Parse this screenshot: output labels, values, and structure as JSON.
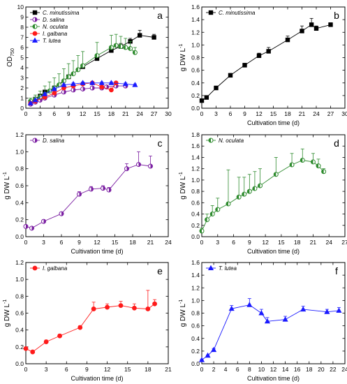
{
  "chart_data": [
    {
      "panel": "a",
      "type": "line",
      "ylabel_main": "OD",
      "ylabel_sub": "750",
      "xlabel": "",
      "xlim": [
        0,
        30
      ],
      "ylim": [
        0,
        10
      ],
      "xticks": [
        0,
        3,
        6,
        9,
        12,
        15,
        18,
        21,
        24,
        27,
        30
      ],
      "yticks": [
        0,
        1,
        2,
        3,
        4,
        5,
        6,
        7,
        8,
        9,
        10
      ],
      "legend_position": "top-left",
      "series": [
        {
          "name": "C. minutissima",
          "color": "#000000",
          "marker": "square",
          "filled": true,
          "x": [
            1,
            2,
            3,
            4,
            6,
            9,
            12,
            15,
            18,
            20,
            22,
            24,
            27
          ],
          "y": [
            0.6,
            0.9,
            1.2,
            1.6,
            2.0,
            3.1,
            4.1,
            4.9,
            5.7,
            6.1,
            6.6,
            7.2,
            7.0
          ],
          "err": [
            0.1,
            0.1,
            0.1,
            0.2,
            0.2,
            0.2,
            0.2,
            0.2,
            0.3,
            0.3,
            0.3,
            0.5,
            0.3
          ]
        },
        {
          "name": "D. salina",
          "color": "#7b1fa2",
          "marker": "circle-half",
          "filled": false,
          "x": [
            1,
            2,
            3,
            4,
            6,
            8,
            10,
            12,
            14,
            16,
            17,
            19,
            21
          ],
          "y": [
            0.4,
            0.6,
            0.8,
            1.0,
            1.3,
            1.6,
            1.8,
            1.9,
            2.0,
            2.0,
            2.1,
            2.2,
            2.2
          ],
          "err": [
            0.1,
            0.1,
            0.1,
            0.1,
            0.1,
            0.1,
            0.1,
            0.1,
            0.1,
            0.1,
            0.1,
            0.1,
            0.1
          ]
        },
        {
          "name": "N. oculata",
          "color": "#2e8b2e",
          "marker": "circle-half",
          "filled": true,
          "x": [
            1,
            2,
            3,
            4,
            5,
            6,
            7,
            8,
            9,
            10,
            11,
            12,
            15,
            18,
            19,
            20,
            21,
            22,
            23
          ],
          "y": [
            0.7,
            0.9,
            1.1,
            1.4,
            1.7,
            2.0,
            2.3,
            2.7,
            3.1,
            3.4,
            3.8,
            4.2,
            5.2,
            6.0,
            6.2,
            6.1,
            6.0,
            5.9,
            5.5
          ],
          "err": [
            0.3,
            0.4,
            0.6,
            0.8,
            0.9,
            1.0,
            1.1,
            1.2,
            1.3,
            1.3,
            1.4,
            1.4,
            1.3,
            1.2,
            1.1,
            1.0,
            0.9,
            0.7,
            0.5
          ]
        },
        {
          "name": "I. galbana",
          "color": "#ff1a1a",
          "marker": "circle",
          "filled": true,
          "x": [
            1,
            2,
            4,
            6,
            8,
            10,
            12,
            14,
            16,
            18,
            19
          ],
          "y": [
            0.5,
            0.7,
            1.1,
            1.5,
            2.0,
            2.2,
            2.4,
            2.5,
            2.1,
            1.8,
            2.5
          ],
          "err": [
            0.05,
            0.05,
            0.1,
            0.1,
            0.1,
            0.2,
            0.1,
            0.1,
            0.1,
            0.1,
            0.1
          ]
        },
        {
          "name": "T. lutea",
          "color": "#1a1aff",
          "marker": "triangle",
          "filled": true,
          "x": [
            1,
            2,
            4,
            6,
            8,
            10,
            12,
            14,
            16,
            18,
            21,
            23
          ],
          "y": [
            0.5,
            0.8,
            1.4,
            1.9,
            2.3,
            2.4,
            2.5,
            2.5,
            2.5,
            2.5,
            2.4,
            2.3
          ],
          "err": [
            0.05,
            0.05,
            0.1,
            0.1,
            0.1,
            0.1,
            0.1,
            0.1,
            0.1,
            0.1,
            0.1,
            0.1
          ]
        }
      ]
    },
    {
      "panel": "b",
      "type": "line",
      "ylabel_main": "g DW L",
      "ylabel_sup": "-1",
      "xlabel": "Cultivation time (d)",
      "xlim": [
        0,
        30
      ],
      "ylim": [
        0,
        1.6
      ],
      "xticks": [
        0,
        3,
        6,
        9,
        12,
        15,
        18,
        21,
        24,
        27,
        30
      ],
      "yticks": [
        0,
        0.2,
        0.4,
        0.6,
        0.8,
        1.0,
        1.2,
        1.4,
        1.6
      ],
      "legend_position": "top-left",
      "series": [
        {
          "name": "C. minutissima",
          "color": "#000000",
          "marker": "square",
          "filled": true,
          "x": [
            0,
            1,
            3,
            6,
            9,
            12,
            14,
            18,
            21,
            23,
            24,
            27
          ],
          "y": [
            0.12,
            0.17,
            0.32,
            0.52,
            0.68,
            0.83,
            0.9,
            1.08,
            1.22,
            1.32,
            1.26,
            1.32
          ],
          "err": [
            0.02,
            0.02,
            0.03,
            0.03,
            0.03,
            0.04,
            0.06,
            0.06,
            0.08,
            0.1,
            0.04,
            0.03
          ]
        }
      ]
    },
    {
      "panel": "c",
      "type": "line",
      "ylabel_main": "g DW L",
      "ylabel_sup": "-1",
      "xlabel": "Cultivation time (d)",
      "xlim": [
        0,
        24
      ],
      "ylim": [
        0,
        1.2
      ],
      "xticks": [
        0,
        3,
        6,
        9,
        12,
        15,
        18,
        21,
        24
      ],
      "yticks": [
        0,
        0.2,
        0.4,
        0.6,
        0.8,
        1.0,
        1.2
      ],
      "legend_position": "top-left",
      "series": [
        {
          "name": "D. salina",
          "color": "#7b1fa2",
          "marker": "circle-half",
          "filled": false,
          "x": [
            0,
            1,
            3,
            6,
            9,
            11,
            13,
            14,
            17,
            19,
            21
          ],
          "y": [
            0.12,
            0.1,
            0.18,
            0.27,
            0.5,
            0.56,
            0.57,
            0.55,
            0.8,
            0.85,
            0.83
          ],
          "err": [
            0.01,
            0.01,
            0.02,
            0.02,
            0.03,
            0.03,
            0.03,
            0.03,
            0.06,
            0.15,
            0.12
          ]
        }
      ]
    },
    {
      "panel": "d",
      "type": "line",
      "ylabel_main": "g DW L",
      "ylabel_sup": "-1",
      "xlabel": "Cultivation time (d)",
      "xlim": [
        0,
        27
      ],
      "ylim": [
        0,
        1.8
      ],
      "xticks": [
        0,
        3,
        6,
        9,
        12,
        15,
        18,
        21,
        24,
        27
      ],
      "yticks": [
        0,
        0.2,
        0.4,
        0.6,
        0.8,
        1.0,
        1.2,
        1.4,
        1.6,
        1.8
      ],
      "legend_position": "top-left",
      "series": [
        {
          "name": "N. oculata",
          "color": "#2e8b2e",
          "marker": "circle-half",
          "filled": true,
          "x": [
            0,
            1,
            2,
            3,
            5,
            7,
            8,
            9,
            10,
            11,
            14,
            17,
            19,
            21,
            22,
            23
          ],
          "y": [
            0.1,
            0.3,
            0.4,
            0.48,
            0.58,
            0.7,
            0.75,
            0.8,
            0.85,
            0.9,
            1.1,
            1.27,
            1.35,
            1.32,
            1.25,
            1.15
          ],
          "err": [
            0.05,
            0.1,
            0.15,
            0.2,
            0.6,
            0.35,
            0.3,
            0.3,
            0.3,
            0.3,
            0.3,
            0.2,
            0.2,
            0.15,
            0.12,
            0.05
          ]
        }
      ]
    },
    {
      "panel": "e",
      "type": "line",
      "ylabel_main": "g DW L",
      "ylabel_sup": "-1",
      "xlabel": "Cultivation time (d)",
      "xlim": [
        0,
        21
      ],
      "ylim": [
        0,
        1.2
      ],
      "xticks": [
        0,
        3,
        6,
        9,
        12,
        15,
        18,
        21
      ],
      "yticks": [
        0,
        0.2,
        0.4,
        0.6,
        0.8,
        1.0,
        1.2
      ],
      "legend_position": "top-left",
      "series": [
        {
          "name": "I. galbana",
          "color": "#ff1a1a",
          "marker": "circle",
          "filled": true,
          "x": [
            0,
            1,
            3,
            5,
            8,
            10,
            12,
            14,
            16,
            18,
            19
          ],
          "y": [
            0.18,
            0.14,
            0.26,
            0.33,
            0.43,
            0.65,
            0.67,
            0.69,
            0.66,
            0.65,
            0.71
          ],
          "err": [
            0.01,
            0.01,
            0.02,
            0.02,
            0.02,
            0.08,
            0.04,
            0.05,
            0.05,
            0.22,
            0.05
          ]
        }
      ]
    },
    {
      "panel": "f",
      "type": "line",
      "ylabel_main": "g DW L",
      "ylabel_sup": "-1",
      "xlabel": "Cultivation time (d)",
      "xlim": [
        0,
        24
      ],
      "ylim": [
        0,
        1.6
      ],
      "xticks": [
        0,
        2,
        4,
        6,
        8,
        10,
        12,
        14,
        16,
        18,
        20,
        22,
        24
      ],
      "yticks": [
        0,
        0.2,
        0.4,
        0.6,
        0.8,
        1.0,
        1.2,
        1.4,
        1.6
      ],
      "legend_position": "top-left",
      "series": [
        {
          "name": "T. lutea",
          "color": "#1a1aff",
          "marker": "triangle",
          "filled": true,
          "x": [
            0,
            1,
            2,
            5,
            8,
            10,
            11,
            14,
            17,
            21,
            23
          ],
          "y": [
            0.06,
            0.13,
            0.22,
            0.87,
            0.93,
            0.8,
            0.67,
            0.7,
            0.86,
            0.82,
            0.84
          ],
          "err": [
            0.01,
            0.01,
            0.02,
            0.05,
            0.1,
            0.06,
            0.06,
            0.05,
            0.05,
            0.04,
            0.05
          ]
        }
      ]
    }
  ]
}
